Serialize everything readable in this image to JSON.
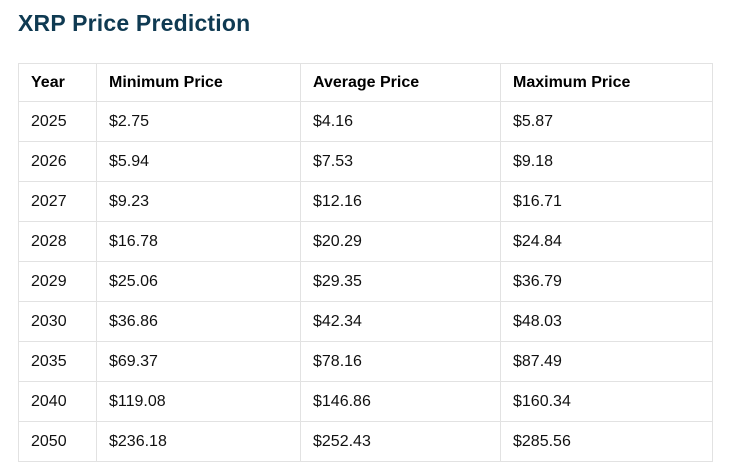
{
  "page": {
    "title": "XRP Price Prediction"
  },
  "colors": {
    "title_text": "#0f3a52",
    "table_border": "#e2e2e2",
    "cell_text": "#111111",
    "background": "#ffffff"
  },
  "table": {
    "headers": [
      "Year",
      "Minimum Price",
      "Average Price",
      "Maximum Price"
    ],
    "rows": [
      [
        "2025",
        "$2.75",
        "$4.16",
        "$5.87"
      ],
      [
        "2026",
        "$5.94",
        "$7.53",
        "$9.18"
      ],
      [
        "2027",
        "$9.23",
        "$12.16",
        "$16.71"
      ],
      [
        "2028",
        "$16.78",
        "$20.29",
        "$24.84"
      ],
      [
        "2029",
        "$25.06",
        "$29.35",
        "$36.79"
      ],
      [
        "2030",
        "$36.86",
        "$42.34",
        "$48.03"
      ],
      [
        "2035",
        "$69.37",
        "$78.16",
        "$87.49"
      ],
      [
        "2040",
        "$119.08",
        "$146.86",
        "$160.34"
      ],
      [
        "2050",
        "$236.18",
        "$252.43",
        "$285.56"
      ]
    ]
  },
  "chart_data": {
    "type": "table",
    "title": "XRP Price Prediction",
    "columns": [
      "Year",
      "Minimum Price",
      "Average Price",
      "Maximum Price"
    ],
    "categories": [
      "2025",
      "2026",
      "2027",
      "2028",
      "2029",
      "2030",
      "2035",
      "2040",
      "2050"
    ],
    "series": [
      {
        "name": "Minimum Price",
        "values": [
          2.75,
          5.94,
          9.23,
          16.78,
          25.06,
          36.86,
          69.37,
          119.08,
          236.18
        ]
      },
      {
        "name": "Average Price",
        "values": [
          4.16,
          7.53,
          12.16,
          20.29,
          29.35,
          42.34,
          78.16,
          146.86,
          252.43
        ]
      },
      {
        "name": "Maximum Price",
        "values": [
          5.87,
          9.18,
          16.71,
          24.84,
          36.79,
          48.03,
          87.49,
          160.34,
          285.56
        ]
      }
    ],
    "unit": "USD"
  }
}
